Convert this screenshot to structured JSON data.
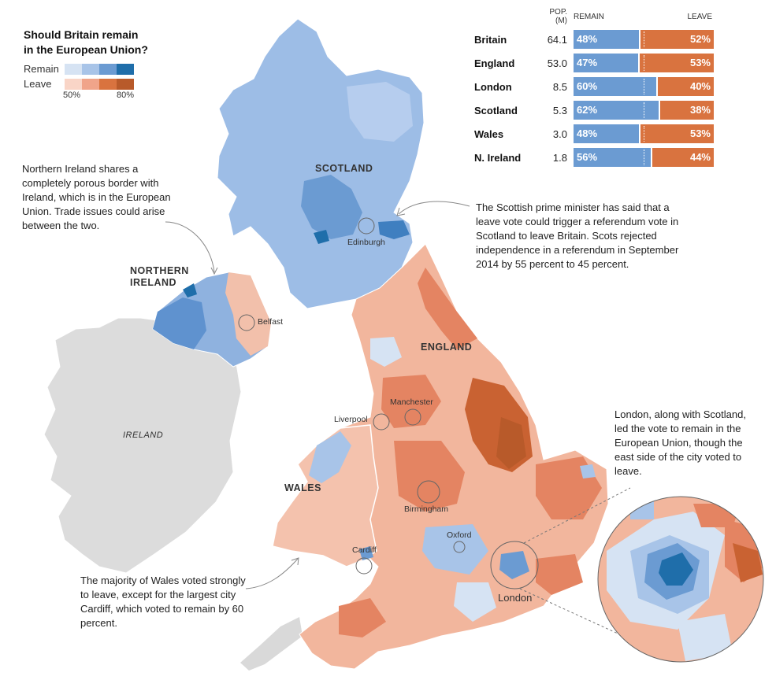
{
  "legend": {
    "title_line1": "Should Britain remain",
    "title_line2": "in the European Union?",
    "remain_label": "Remain",
    "leave_label": "Leave",
    "tick_low": "50%",
    "tick_high": "80%",
    "remain_colors": [
      "#d6e3f3",
      "#a8c4e8",
      "#6b9bd2",
      "#1f6eaa"
    ],
    "leave_colors": [
      "#f9d5c7",
      "#f0a48a",
      "#d9733f",
      "#b85a2a"
    ]
  },
  "table": {
    "headers": {
      "pop": "POP. (M)",
      "remain": "REMAIN",
      "leave": "LEAVE"
    },
    "rows": [
      {
        "region": "Britain",
        "pop": "64.1",
        "remain": "48%",
        "leave": "52%",
        "remain_share": 0.48
      },
      {
        "region": "England",
        "pop": "53.0",
        "remain": "47%",
        "leave": "53%",
        "remain_share": 0.47
      },
      {
        "region": "London",
        "pop": "8.5",
        "remain": "60%",
        "leave": "40%",
        "remain_share": 0.6
      },
      {
        "region": "Scotland",
        "pop": "5.3",
        "remain": "62%",
        "leave": "38%",
        "remain_share": 0.62
      },
      {
        "region": "Wales",
        "pop": "3.0",
        "remain": "48%",
        "leave": "53%",
        "remain_share": 0.48
      },
      {
        "region": "N. Ireland",
        "pop": "1.8",
        "remain": "56%",
        "leave": "44%",
        "remain_share": 0.56
      }
    ]
  },
  "annotations": {
    "n_ireland": "Northern Ireland shares a completely porous border with Ireland, which is in the European Union. Trade issues could arise between the two.",
    "scotland": "The Scottish prime minister has said that a leave vote could trigger a referendum vote in Scotland to leave Britain. Scots rejected independence in a referendum in September 2014 by 55 percent to 45 percent.",
    "london": "London, along with Scotland, led the vote to remain in the European Union, though the east side of the city voted to leave.",
    "wales": "The majority of Wales voted strongly to leave, except for the largest city Cardiff, which voted to remain by 60 percent."
  },
  "countries": {
    "scotland": "SCOTLAND",
    "northern_ireland_1": "NORTHERN",
    "northern_ireland_2": "IRELAND",
    "england": "ENGLAND",
    "wales": "WALES",
    "ireland": "IRELAND"
  },
  "cities": {
    "edinburgh": "Edinburgh",
    "belfast": "Belfast",
    "liverpool": "Liverpool",
    "manchester": "Manchester",
    "birmingham": "Birmingham",
    "oxford": "Oxford",
    "cardiff": "Cardiff",
    "london": "London"
  }
}
